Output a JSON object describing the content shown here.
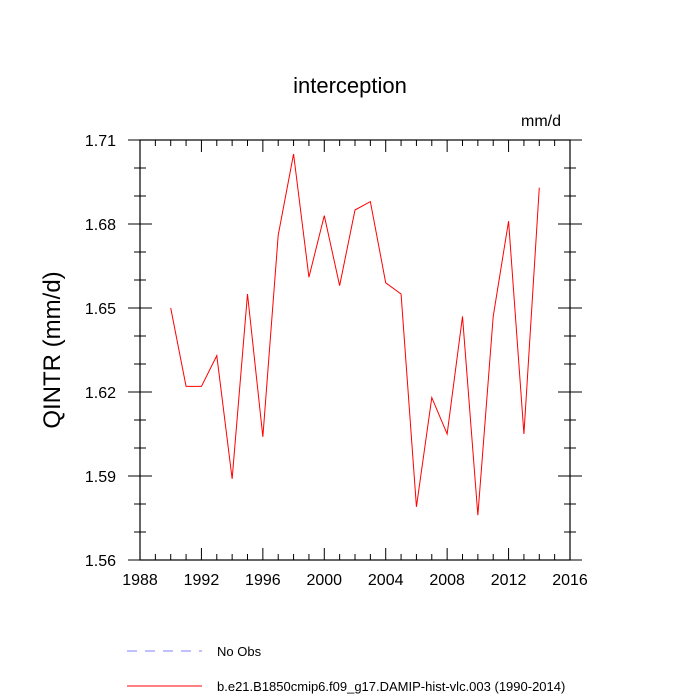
{
  "chart_data": {
    "type": "line",
    "title": "interception",
    "units": "mm/d",
    "xlabel": "",
    "ylabel": "QINTR  (mm/d)",
    "xlim": [
      1988,
      2016
    ],
    "ylim": [
      1.56,
      1.71
    ],
    "xticks": [
      1988,
      1992,
      1996,
      2000,
      2004,
      2008,
      2012,
      2016
    ],
    "xtick_labels": [
      "1988",
      "1992",
      "1996",
      "2000",
      "2004",
      "2008",
      "2012",
      "2016"
    ],
    "yticks": [
      1.56,
      1.59,
      1.62,
      1.65,
      1.68,
      1.71
    ],
    "ytick_labels": [
      "1.56",
      "1.59",
      "1.62",
      "1.65",
      "1.68",
      "1.71"
    ],
    "grid": false,
    "series": [
      {
        "name": "b.e21.B1850cmip6.f09_g17.DAMIP-hist-vlc.003 (1990-2014)",
        "color": "#ff0000",
        "style": "solid",
        "x": [
          1990,
          1991,
          1992,
          1993,
          1994,
          1995,
          1996,
          1997,
          1998,
          1999,
          2000,
          2001,
          2002,
          2003,
          2004,
          2005,
          2006,
          2007,
          2008,
          2009,
          2010,
          2011,
          2012,
          2013,
          2014
        ],
        "values": [
          1.65,
          1.622,
          1.622,
          1.633,
          1.589,
          1.655,
          1.604,
          1.676,
          1.705,
          1.661,
          1.683,
          1.658,
          1.685,
          1.688,
          1.659,
          1.655,
          1.579,
          1.618,
          1.605,
          1.647,
          1.576,
          1.647,
          1.681,
          1.605,
          1.693
        ]
      }
    ],
    "legend": [
      {
        "label": "No Obs",
        "color": "#8080ff",
        "style": "dashed"
      },
      {
        "label": "b.e21.B1850cmip6.f09_g17.DAMIP-hist-vlc.003 (1990-2014)",
        "color": "#ff0000",
        "style": "solid"
      }
    ],
    "legend_position": "bottom"
  }
}
